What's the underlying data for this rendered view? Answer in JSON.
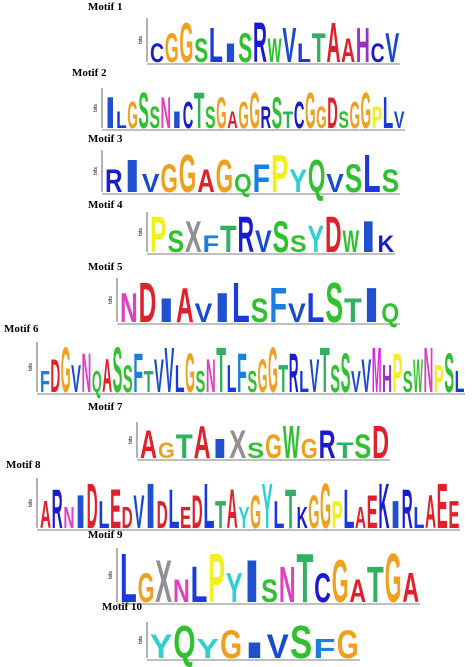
{
  "axis_label": "bits",
  "motifs": [
    {
      "label": "Motif 1",
      "letters": "CGGSLISRWVLTAAHCV"
    },
    {
      "label": "Motif 2",
      "letters": "ILGSSNICTSGAGGRSTCGGDSGGPLV"
    },
    {
      "label": "Motif 3",
      "letters": "RIVGGAGQFPYQVSLS"
    },
    {
      "label": "Motif 4",
      "letters": "PSXFTRVSSYDWIK"
    },
    {
      "label": "Motif 5",
      "letters": "NDIAVILSFVLSTIQ"
    },
    {
      "label": "Motif 6",
      "letters": "FDGVNQASSFTVVLGSNTLFSGGTRLVTSSVVMHPSWNPSL"
    },
    {
      "label": "Motif 7",
      "letters": "AGTAIXSGWGRTSD"
    },
    {
      "label": "Motif 8",
      "letters": "ARNIDLEDVIDLEDLTAYGYLTKGGPLAEKIRLAEE"
    },
    {
      "label": "Motif 9",
      "letters": "LGXNLPYISNTCGATGA"
    },
    {
      "label": "Motif 10",
      "letters": "YQYGIVSFG"
    }
  ]
}
